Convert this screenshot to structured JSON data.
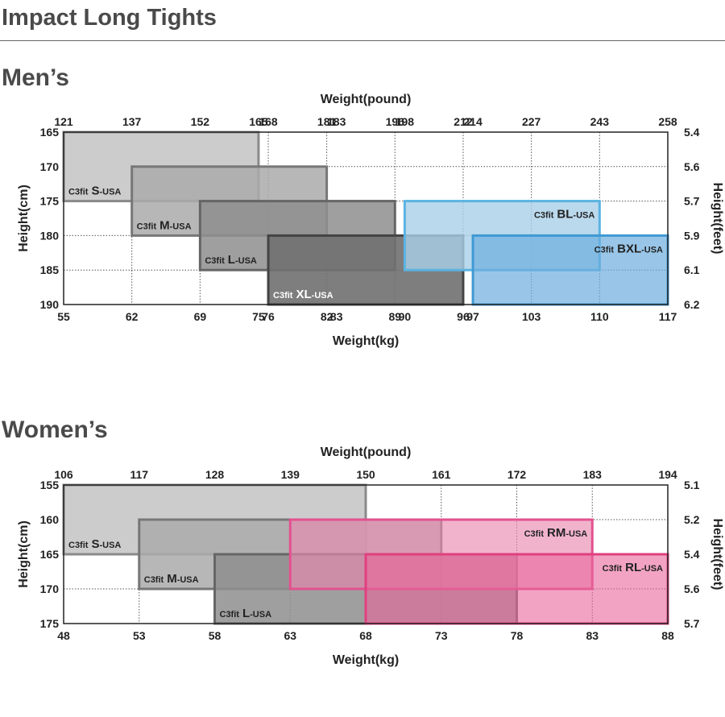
{
  "page_title": "Impact Long Tights",
  "chart_data": [
    {
      "type": "size-chart",
      "section": "Men’s",
      "x_title_top": "Weight(pound)",
      "x_title_bottom": "Weight(kg)",
      "y_title_left": "Height(cm)",
      "y_title_right": "Height(feet)",
      "x_range": [
        55,
        117
      ],
      "y_range": [
        165,
        190
      ],
      "kg_ticks": [
        55,
        62,
        69,
        75,
        76,
        82,
        83,
        89,
        90,
        96,
        97,
        103,
        110,
        117
      ],
      "pound_ticks": [
        {
          "kg": 55,
          "label": "121"
        },
        {
          "kg": 62,
          "label": "137"
        },
        {
          "kg": 69,
          "label": "152"
        },
        {
          "kg": 75,
          "label": "165"
        },
        {
          "kg": 76,
          "label": "168"
        },
        {
          "kg": 82,
          "label": "181"
        },
        {
          "kg": 83,
          "label": "183"
        },
        {
          "kg": 89,
          "label": "196"
        },
        {
          "kg": 90,
          "label": "198"
        },
        {
          "kg": 96,
          "label": "212"
        },
        {
          "kg": 97,
          "label": "214"
        },
        {
          "kg": 103,
          "label": "227"
        },
        {
          "kg": 110,
          "label": "243"
        },
        {
          "kg": 117,
          "label": "258"
        }
      ],
      "cm_ticks": [
        165,
        170,
        175,
        180,
        185,
        190
      ],
      "feet_ticks": [
        {
          "cm": 165,
          "label": "5.4"
        },
        {
          "cm": 170,
          "label": "5.6"
        },
        {
          "cm": 175,
          "label": "5.7"
        },
        {
          "cm": 180,
          "label": "5.9"
        },
        {
          "cm": 185,
          "label": "6.1"
        },
        {
          "cm": 190,
          "label": "6.2"
        }
      ],
      "gridlines_x": [
        62,
        69,
        76,
        82,
        89,
        96,
        103,
        110
      ],
      "gridlines_y": [
        170,
        175,
        180,
        185
      ],
      "sizes": [
        {
          "brand": "C3fit",
          "size": "S",
          "suffix": "-USA",
          "weight_kg": [
            55,
            75
          ],
          "height_cm": [
            165,
            175
          ],
          "fill": "#cccccc",
          "stroke": "#8a8a8a",
          "opacity": 1,
          "label_pos": "bottom-left"
        },
        {
          "brand": "C3fit",
          "size": "M",
          "suffix": "-USA",
          "weight_kg": [
            62,
            82
          ],
          "height_cm": [
            170,
            180
          ],
          "fill": "#aaaaaa",
          "stroke": "#777777",
          "opacity": 0.85,
          "label_pos": "bottom-left"
        },
        {
          "brand": "C3fit",
          "size": "L",
          "suffix": "-USA",
          "weight_kg": [
            69,
            89
          ],
          "height_cm": [
            175,
            185
          ],
          "fill": "#8e8e8e",
          "stroke": "#666666",
          "opacity": 0.85,
          "label_pos": "bottom-left"
        },
        {
          "brand": "C3fit",
          "size": "XL",
          "suffix": "-USA",
          "weight_kg": [
            76,
            96
          ],
          "height_cm": [
            180,
            190
          ],
          "fill": "#707070",
          "stroke": "#444444",
          "opacity": 0.9,
          "label_pos": "bottom-left",
          "light_text": true
        },
        {
          "brand": "C3fit",
          "size": "BL",
          "suffix": "-USA",
          "weight_kg": [
            90,
            110
          ],
          "height_cm": [
            175,
            185
          ],
          "fill": "#a9cfe9",
          "stroke": "#5bb3e2",
          "opacity": 0.8,
          "label_pos": "top-right"
        },
        {
          "brand": "C3fit",
          "size": "BXL",
          "suffix": "-USA",
          "weight_kg": [
            97,
            117
          ],
          "height_cm": [
            180,
            190
          ],
          "fill": "#6eaede",
          "stroke": "#3f9ad4",
          "opacity": 0.7,
          "label_pos": "top-right"
        }
      ]
    },
    {
      "type": "size-chart",
      "section": "Women’s",
      "x_title_top": "Weight(pound)",
      "x_title_bottom": "Weight(kg)",
      "y_title_left": "Height(cm)",
      "y_title_right": "Height(feet)",
      "x_range": [
        48,
        88
      ],
      "y_range": [
        155,
        175
      ],
      "kg_ticks": [
        48,
        53,
        58,
        63,
        68,
        73,
        78,
        83,
        88
      ],
      "pound_ticks": [
        {
          "kg": 48,
          "label": "106"
        },
        {
          "kg": 53,
          "label": "117"
        },
        {
          "kg": 58,
          "label": "128"
        },
        {
          "kg": 63,
          "label": "139"
        },
        {
          "kg": 68,
          "label": "150"
        },
        {
          "kg": 73,
          "label": "161"
        },
        {
          "kg": 78,
          "label": "172"
        },
        {
          "kg": 83,
          "label": "183"
        },
        {
          "kg": 88,
          "label": "194"
        }
      ],
      "cm_ticks": [
        155,
        160,
        165,
        170,
        175
      ],
      "feet_ticks": [
        {
          "cm": 155,
          "label": "5.1"
        },
        {
          "cm": 160,
          "label": "5.2"
        },
        {
          "cm": 165,
          "label": "5.4"
        },
        {
          "cm": 170,
          "label": "5.6"
        },
        {
          "cm": 175,
          "label": "5.7"
        }
      ],
      "gridlines_x": [
        53,
        58,
        63,
        68,
        73,
        78,
        83
      ],
      "gridlines_y": [
        160,
        165,
        170
      ],
      "sizes": [
        {
          "brand": "C3fit",
          "size": "S",
          "suffix": "-USA",
          "weight_kg": [
            48,
            68
          ],
          "height_cm": [
            155,
            165
          ],
          "fill": "#cccccc",
          "stroke": "#8a8a8a",
          "opacity": 1,
          "label_pos": "bottom-left"
        },
        {
          "brand": "C3fit",
          "size": "M",
          "suffix": "-USA",
          "weight_kg": [
            53,
            73
          ],
          "height_cm": [
            160,
            170
          ],
          "fill": "#aaaaaa",
          "stroke": "#777777",
          "opacity": 0.85,
          "label_pos": "bottom-left"
        },
        {
          "brand": "C3fit",
          "size": "L",
          "suffix": "-USA",
          "weight_kg": [
            58,
            78
          ],
          "height_cm": [
            165,
            175
          ],
          "fill": "#8e8e8e",
          "stroke": "#666666",
          "opacity": 0.85,
          "label_pos": "bottom-left"
        },
        {
          "brand": "C3fit",
          "size": "RM",
          "suffix": "-USA",
          "weight_kg": [
            63,
            83
          ],
          "height_cm": [
            160,
            170
          ],
          "fill": "#ea8bb0",
          "stroke": "#e2508f",
          "opacity": 0.65,
          "label_pos": "top-right"
        },
        {
          "brand": "C3fit",
          "size": "RL",
          "suffix": "-USA",
          "weight_kg": [
            68,
            88
          ],
          "height_cm": [
            165,
            175
          ],
          "fill": "#e9659b",
          "stroke": "#e0407f",
          "opacity": 0.6,
          "label_pos": "top-right"
        }
      ]
    }
  ]
}
